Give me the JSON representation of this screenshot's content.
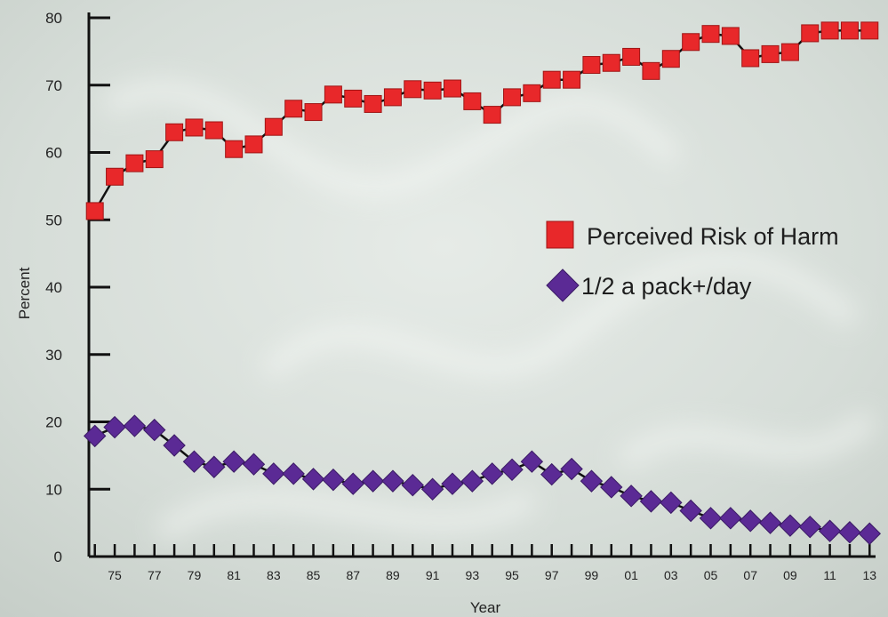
{
  "chart_data": {
    "type": "line",
    "title": "",
    "xlabel": "Year",
    "ylabel": "Percent",
    "ylim": [
      0,
      80
    ],
    "xlim": [
      1974,
      2013
    ],
    "x_tick_labels": [
      "75",
      "77",
      "79",
      "81",
      "83",
      "85",
      "87",
      "89",
      "91",
      "93",
      "95",
      "97",
      "99",
      "01",
      "03",
      "05",
      "07",
      "09",
      "11",
      "13"
    ],
    "x_tick_values": [
      1975,
      1977,
      1979,
      1981,
      1983,
      1985,
      1987,
      1989,
      1991,
      1993,
      1995,
      1997,
      1999,
      2001,
      2003,
      2005,
      2007,
      2009,
      2011,
      2013
    ],
    "y_tick_labels": [
      "0",
      "10",
      "20",
      "30",
      "40",
      "50",
      "60",
      "70",
      "80"
    ],
    "y_tick_values": [
      0,
      10,
      20,
      30,
      40,
      50,
      60,
      70,
      80
    ],
    "grid": false,
    "legend_position": "right",
    "x": [
      1974,
      1975,
      1976,
      1977,
      1978,
      1979,
      1980,
      1981,
      1982,
      1983,
      1984,
      1985,
      1986,
      1987,
      1988,
      1989,
      1990,
      1991,
      1992,
      1993,
      1994,
      1995,
      1996,
      1997,
      1998,
      1999,
      2000,
      2001,
      2002,
      2003,
      2004,
      2005,
      2006,
      2007,
      2008,
      2009,
      2010,
      2011,
      2012,
      2013
    ],
    "series": [
      {
        "name": "Perceived Risk of Harm",
        "color": "#e8282a",
        "marker": "square",
        "values": [
          51.3,
          56.4,
          58.4,
          59.0,
          63.0,
          63.7,
          63.3,
          60.5,
          61.2,
          63.8,
          66.5,
          66.0,
          68.6,
          68.0,
          67.2,
          68.2,
          69.4,
          69.2,
          69.5,
          67.6,
          65.6,
          68.2,
          68.8,
          70.8,
          70.8,
          73.0,
          73.3,
          74.2,
          72.1,
          73.9,
          76.4,
          77.6,
          77.3,
          74.0,
          74.6,
          74.9,
          77.7,
          78.1,
          78.1,
          78.1
        ]
      },
      {
        "name": "1/2 a pack+/day",
        "color": "#5b2a95",
        "marker": "diamond",
        "values": [
          17.9,
          19.2,
          19.4,
          18.8,
          16.5,
          14.1,
          13.3,
          14.1,
          13.7,
          12.3,
          12.3,
          11.5,
          11.4,
          10.8,
          11.2,
          11.2,
          10.6,
          10.0,
          10.8,
          11.2,
          12.3,
          12.9,
          14.1,
          12.2,
          13.0,
          11.2,
          10.3,
          9.0,
          8.2,
          8.0,
          6.8,
          5.7,
          5.7,
          5.3,
          5.0,
          4.6,
          4.4,
          3.8,
          3.6,
          3.4
        ]
      }
    ]
  }
}
